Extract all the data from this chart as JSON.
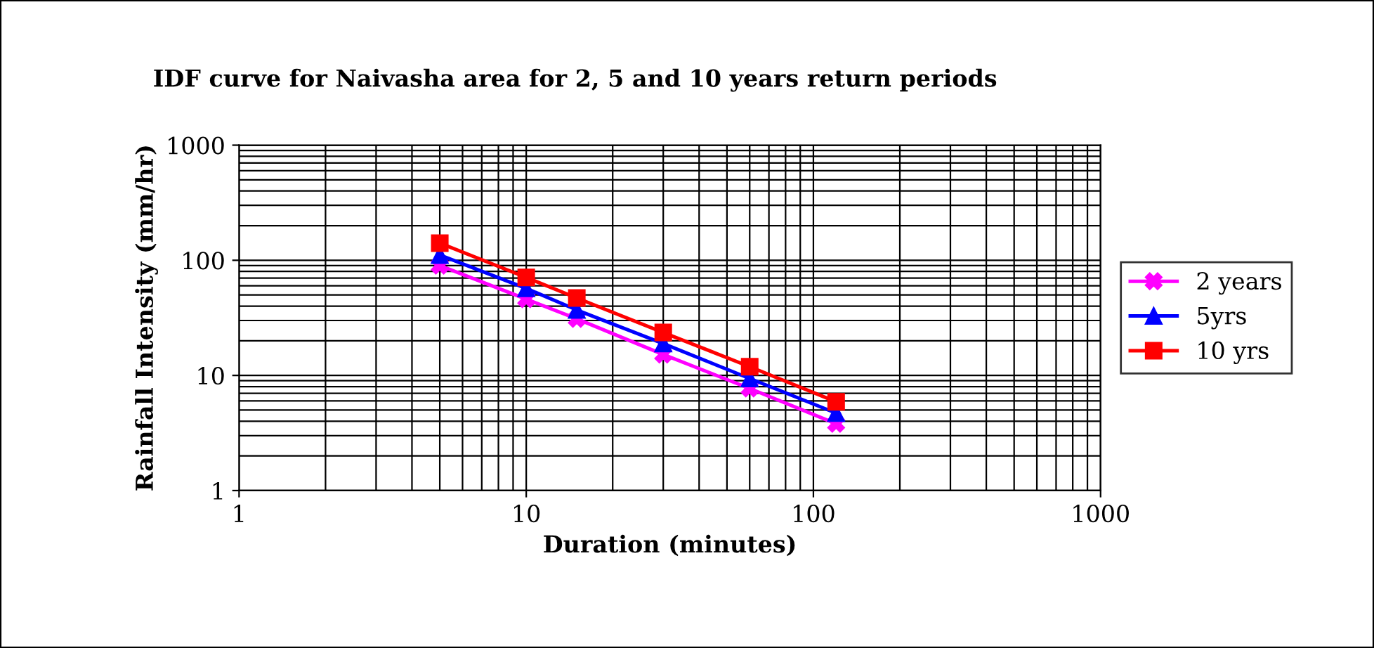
{
  "chart_data": {
    "type": "line",
    "title": "IDF curve for Naivasha area for 2, 5 and 10 years return periods",
    "xlabel": "Duration (minutes)",
    "ylabel": "Rainfall Intensity (mm/hr)",
    "x": [
      5,
      10,
      15,
      30,
      60,
      120
    ],
    "series": [
      {
        "name": "2 years",
        "color": "#ff00ff",
        "marker": "cross",
        "values": [
          90,
          46,
          31,
          15.2,
          7.7,
          3.8
        ]
      },
      {
        "name": "5yrs",
        "color": "#0000ff",
        "marker": "triangle",
        "values": [
          111,
          57,
          37,
          18.9,
          9.4,
          4.7
        ]
      },
      {
        "name": "10 yrs",
        "color": "#ff0000",
        "marker": "square",
        "values": [
          141,
          71,
          47,
          23.6,
          11.9,
          5.9
        ]
      }
    ],
    "log": "xy",
    "xlim": [
      1,
      1000
    ],
    "ylim": [
      1,
      1000
    ],
    "xticks": [
      1,
      10,
      100,
      1000
    ],
    "yticks": [
      1,
      10,
      100,
      1000
    ],
    "grid": true,
    "legend": "right"
  }
}
